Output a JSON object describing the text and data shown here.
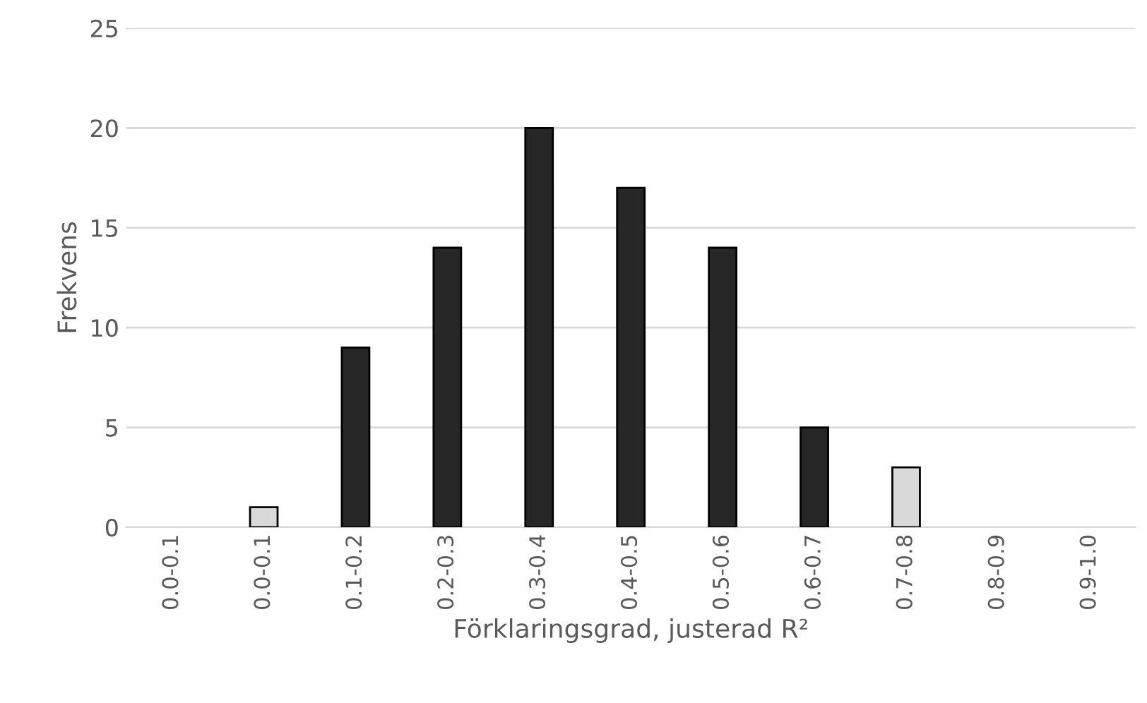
{
  "chart_data": {
    "type": "bar",
    "xlabel": "Förklaringsgrad, justerad R²",
    "ylabel": "Frekvens",
    "categories": [
      "0.0-0.1",
      "0.0-0.1",
      "0.1-0.2",
      "0.2-0.3",
      "0.3-0.4",
      "0.4-0.5",
      "0.5-0.6",
      "0.6-0.7",
      "0.7-0.8",
      "0.8-0.9",
      "0.9-1.0"
    ],
    "values": [
      0,
      1,
      9,
      14,
      20,
      17,
      14,
      5,
      3,
      0,
      0
    ],
    "colors": [
      "#262626",
      "#d9d9d9",
      "#262626",
      "#262626",
      "#262626",
      "#262626",
      "#262626",
      "#262626",
      "#d9d9d9",
      "#262626",
      "#262626"
    ],
    "ylim": [
      0,
      25
    ],
    "yticks": [
      0,
      5,
      10,
      15,
      20,
      25
    ],
    "grid": "y",
    "legend": false
  }
}
